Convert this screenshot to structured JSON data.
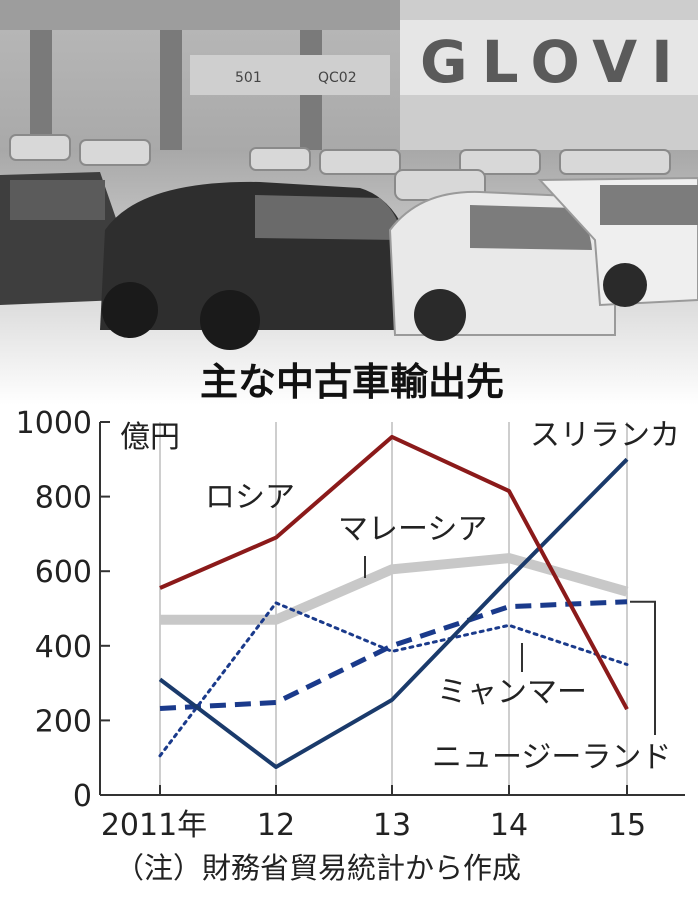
{
  "photo": {
    "sign_text": "GLOVI",
    "crane_labels": [
      "501",
      "QC02"
    ]
  },
  "chart_data": {
    "type": "line",
    "title": "主な中古車輸出先",
    "ylabel": "億円",
    "ylim": [
      0,
      1000
    ],
    "yticks": [
      0,
      200,
      400,
      600,
      800,
      1000
    ],
    "categories": [
      "2011年",
      "12",
      "13",
      "14",
      "15"
    ],
    "note": "（注）財務省貿易統計から作成",
    "series": [
      {
        "name": "ロシア",
        "values": [
          555,
          690,
          960,
          815,
          230
        ],
        "color": "#8b1a1a",
        "style": "solid"
      },
      {
        "name": "マレーシア",
        "values": [
          470,
          470,
          605,
          635,
          545
        ],
        "color": "#c8c8c8",
        "style": "thick"
      },
      {
        "name": "スリランカ",
        "values": [
          310,
          75,
          255,
          580,
          900
        ],
        "color": "#1a3a6b",
        "style": "solid"
      },
      {
        "name": "ミャンマー",
        "values": [
          105,
          515,
          385,
          455,
          350
        ],
        "color": "#1a3a8b",
        "style": "dotted"
      },
      {
        "name": "ニュージーランド",
        "values": [
          232,
          248,
          400,
          505,
          518
        ],
        "color": "#1a3a8b",
        "style": "dashed"
      }
    ]
  }
}
